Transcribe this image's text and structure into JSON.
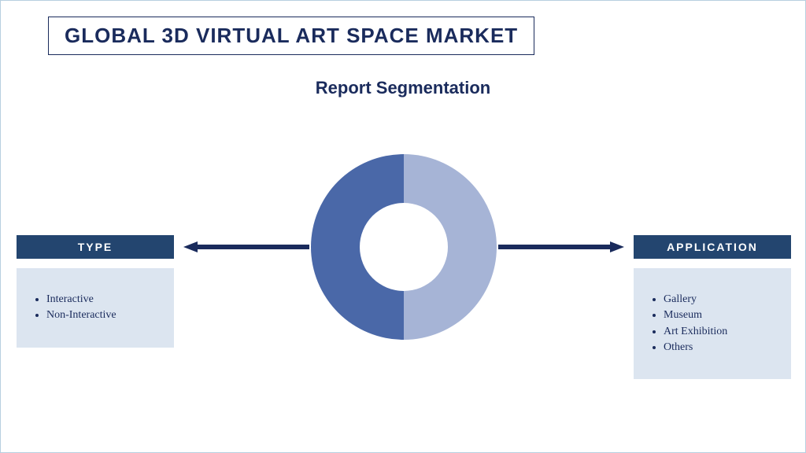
{
  "title": "GLOBAL 3D VIRTUAL ART SPACE MARKET",
  "subtitle": "Report Segmentation",
  "colors": {
    "border": "#b8cfe0",
    "dark_navy": "#1a2b5c",
    "header_bg": "#23456f",
    "panel_bg": "#dce5f0",
    "donut_left": "#a6b4d6",
    "donut_right": "#4a68a8",
    "arrow": "#1a2b5c"
  },
  "donut": {
    "type": "donut",
    "outer_radius": 118,
    "inner_radius": 56,
    "slices": [
      {
        "fraction": 0.5,
        "color": "#a6b4d6",
        "side": "left"
      },
      {
        "fraction": 0.5,
        "color": "#4a68a8",
        "side": "right"
      }
    ],
    "background": "#ffffff"
  },
  "left_panel": {
    "header": "TYPE",
    "items": [
      "Interactive",
      "Non-Interactive"
    ]
  },
  "right_panel": {
    "header": "APPLICATION",
    "items": [
      "Gallery",
      "Museum",
      "Art Exhibition",
      "Others"
    ]
  },
  "typography": {
    "title_fontsize": 26,
    "subtitle_fontsize": 22,
    "header_fontsize": 14,
    "item_fontsize": 14
  }
}
